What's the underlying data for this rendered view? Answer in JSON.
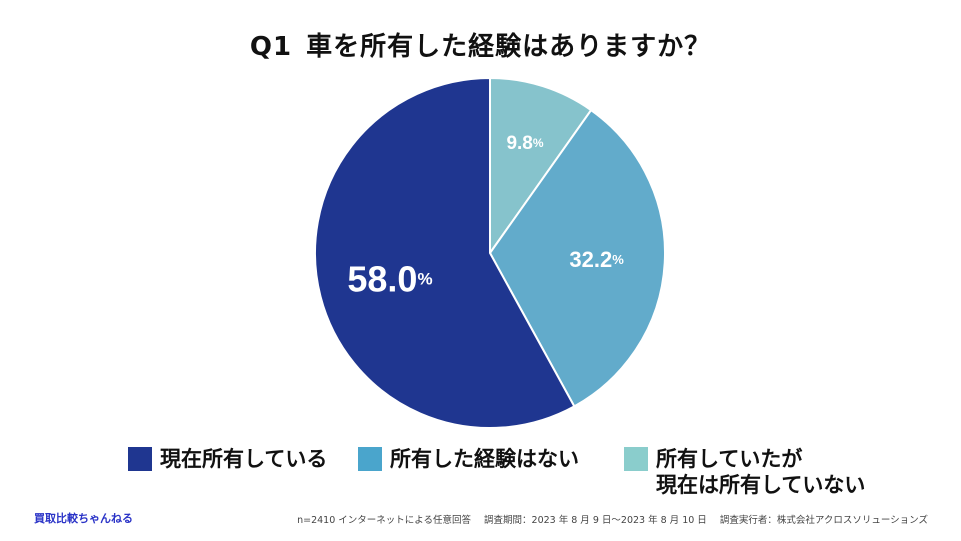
{
  "title": {
    "number": "Q1",
    "question": "車を所有した経験はありますか？"
  },
  "chart_data": {
    "type": "pie",
    "title": "Q1 車を所有した経験はありますか？",
    "unit": "%",
    "start": "top (12 o'clock), clockwise",
    "slices": [
      {
        "name": "所有していたが現在は所有していない",
        "value": 9.8,
        "label": "9.8",
        "color": "#86c3cc"
      },
      {
        "name": "所有した経験はない",
        "value": 32.2,
        "label": "32.2",
        "color": "#62abcb"
      },
      {
        "name": "現在所有している",
        "value": 58.0,
        "label": "58.0",
        "color": "#1f3690"
      }
    ]
  },
  "legend": [
    {
      "lines": [
        "現在所有している"
      ],
      "color": "#1f3690"
    },
    {
      "lines": [
        "所有した経験はない"
      ],
      "color": "#4aa5cc"
    },
    {
      "lines": [
        "所有していたが",
        "現在は所有していない"
      ],
      "color": "#8acdcc"
    }
  ],
  "footer": {
    "brand": "買取比較ちゃんねる",
    "sample": "n=2410 インターネットによる任意回答",
    "period": "調査期間：2023 年 8 月 9 日〜2023 年 8 月 10 日",
    "org": "調査実行者：株式会社アクロスソリューションズ"
  }
}
